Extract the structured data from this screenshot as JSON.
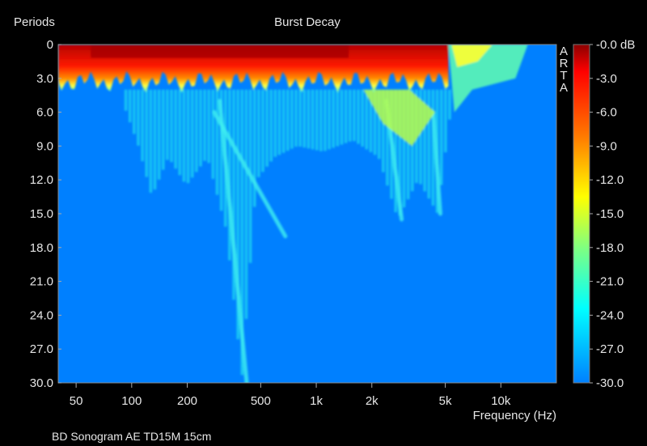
{
  "chart_data": {
    "type": "heatmap",
    "title": "Burst Decay",
    "ylabel": "Periods",
    "xlabel": "Frequency (Hz)",
    "footer": "BD Sonogram AE TD15M 15cm",
    "watermark": "ARTA",
    "x_scale": "log",
    "xlim": [
      40,
      20000
    ],
    "ylim": [
      0,
      30
    ],
    "x_ticks": [
      {
        "label": "50",
        "value": 50
      },
      {
        "label": "100",
        "value": 100
      },
      {
        "label": "200",
        "value": 200
      },
      {
        "label": "500",
        "value": 500
      },
      {
        "label": "1k",
        "value": 1000
      },
      {
        "label": "2k",
        "value": 2000
      },
      {
        "label": "5k",
        "value": 5000
      },
      {
        "label": "10k",
        "value": 10000
      }
    ],
    "y_ticks": [
      "0",
      "3.0",
      "6.0",
      "9.0",
      "12.0",
      "15.0",
      "18.0",
      "21.0",
      "24.0",
      "27.0",
      "30.0"
    ],
    "colorbar": {
      "range_db": [
        0,
        -30
      ],
      "tick_labels": [
        "-0.0 dB",
        "-3.0",
        "-6.0",
        "-9.0",
        "-12.0",
        "-15.0",
        "-18.0",
        "-21.0",
        "-24.0",
        "-27.0",
        "-30.0"
      ],
      "colors": [
        "#8b0000",
        "#ff0000",
        "#ff8000",
        "#ffff00",
        "#80ff80",
        "#00ffff",
        "#0080ff"
      ]
    },
    "decay_profile": {
      "note": "periods at which level falls to -30 dB, per frequency",
      "points": [
        {
          "f": 40,
          "p": 4.5
        },
        {
          "f": 60,
          "p": 5.2
        },
        {
          "f": 90,
          "p": 5.0
        },
        {
          "f": 110,
          "p": 9.0
        },
        {
          "f": 130,
          "p": 13.5
        },
        {
          "f": 160,
          "p": 10.0
        },
        {
          "f": 200,
          "p": 12.5
        },
        {
          "f": 260,
          "p": 10.0
        },
        {
          "f": 330,
          "p": 16.5
        },
        {
          "f": 400,
          "p": 29.5
        },
        {
          "f": 480,
          "p": 12.0
        },
        {
          "f": 600,
          "p": 10.0
        },
        {
          "f": 800,
          "p": 9.0
        },
        {
          "f": 1100,
          "p": 9.5
        },
        {
          "f": 1600,
          "p": 8.5
        },
        {
          "f": 2200,
          "p": 10.0
        },
        {
          "f": 2800,
          "p": 15.5
        },
        {
          "f": 3600,
          "p": 12.0
        },
        {
          "f": 4600,
          "p": 15.0
        },
        {
          "f": 5500,
          "p": 5.0
        },
        {
          "f": 8000,
          "p": 3.5
        },
        {
          "f": 12000,
          "p": 3.0
        },
        {
          "f": 15000,
          "p": 1.0
        },
        {
          "f": 20000,
          "p": 0.5
        }
      ]
    },
    "ridges": [
      {
        "f_start": 300,
        "p_start": 5,
        "f_end": 420,
        "p_end": 30
      },
      {
        "f_start": 280,
        "p_start": 6,
        "f_end": 680,
        "p_end": 17
      },
      {
        "f_start": 2400,
        "p_start": 5,
        "f_end": 2900,
        "p_end": 15.5
      },
      {
        "f_start": 4300,
        "p_start": 6,
        "f_end": 4700,
        "p_end": 15
      }
    ]
  }
}
